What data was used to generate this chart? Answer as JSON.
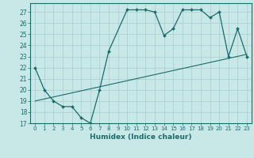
{
  "title": "",
  "xlabel": "Humidex (Indice chaleur)",
  "ylabel": "",
  "bg_color": "#c8e8e8",
  "grid_color": "#a8cccc",
  "line_color": "#1a6b6b",
  "xlim": [
    -0.5,
    23.5
  ],
  "ylim": [
    17,
    27.8
  ],
  "yticks": [
    17,
    18,
    19,
    20,
    21,
    22,
    23,
    24,
    25,
    26,
    27
  ],
  "xticks": [
    0,
    1,
    2,
    3,
    4,
    5,
    6,
    7,
    8,
    9,
    10,
    11,
    12,
    13,
    14,
    15,
    16,
    17,
    18,
    19,
    20,
    21,
    22,
    23
  ],
  "line1_x": [
    0,
    1,
    2,
    3,
    4,
    5,
    6,
    7,
    8,
    10,
    11,
    12,
    13,
    14,
    15,
    16,
    17,
    18,
    19,
    20,
    21,
    22,
    23
  ],
  "line1_y": [
    22,
    20,
    19,
    18.5,
    18.5,
    17.5,
    17,
    20,
    23.5,
    27.2,
    27.2,
    27.2,
    27.0,
    24.9,
    25.5,
    27.2,
    27.2,
    27.2,
    26.5,
    27.0,
    23.0,
    25.5,
    23.0
  ],
  "line2_x": [
    0,
    23
  ],
  "line2_y": [
    19.0,
    23.2
  ]
}
